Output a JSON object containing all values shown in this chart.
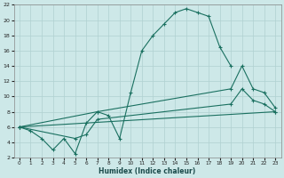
{
  "xlabel": "Humidex (Indice chaleur)",
  "xlim": [
    -0.5,
    23.5
  ],
  "ylim": [
    2,
    22
  ],
  "xticks": [
    0,
    1,
    2,
    3,
    4,
    5,
    6,
    7,
    8,
    9,
    10,
    11,
    12,
    13,
    14,
    15,
    16,
    17,
    18,
    19,
    20,
    21,
    22,
    23
  ],
  "yticks": [
    2,
    4,
    6,
    8,
    10,
    12,
    14,
    16,
    18,
    20,
    22
  ],
  "bg_color": "#cde8e8",
  "grid_color": "#b0d0d0",
  "line_color": "#1a7060",
  "line1_x": [
    0,
    1,
    2,
    3,
    4,
    5,
    6,
    7,
    8,
    9,
    10,
    11,
    12,
    13,
    14,
    15,
    16,
    17,
    18,
    19
  ],
  "line1_y": [
    6,
    5.5,
    4.5,
    3,
    4.5,
    2.5,
    6.5,
    8,
    7.5,
    4.5,
    10.5,
    16,
    18,
    19.5,
    21,
    21.5,
    21,
    20.5,
    16.5,
    14
  ],
  "line2_x": [
    0,
    7,
    19,
    20,
    21,
    22,
    23
  ],
  "line2_y": [
    6,
    8,
    11,
    14,
    11,
    10.5,
    8.5
  ],
  "line3_x": [
    0,
    5,
    6,
    7,
    19,
    20,
    21,
    22,
    23
  ],
  "line3_y": [
    6,
    4.5,
    5,
    7,
    9,
    11,
    9.5,
    9,
    8
  ],
  "line4_x": [
    0,
    23
  ],
  "line4_y": [
    6,
    8
  ]
}
